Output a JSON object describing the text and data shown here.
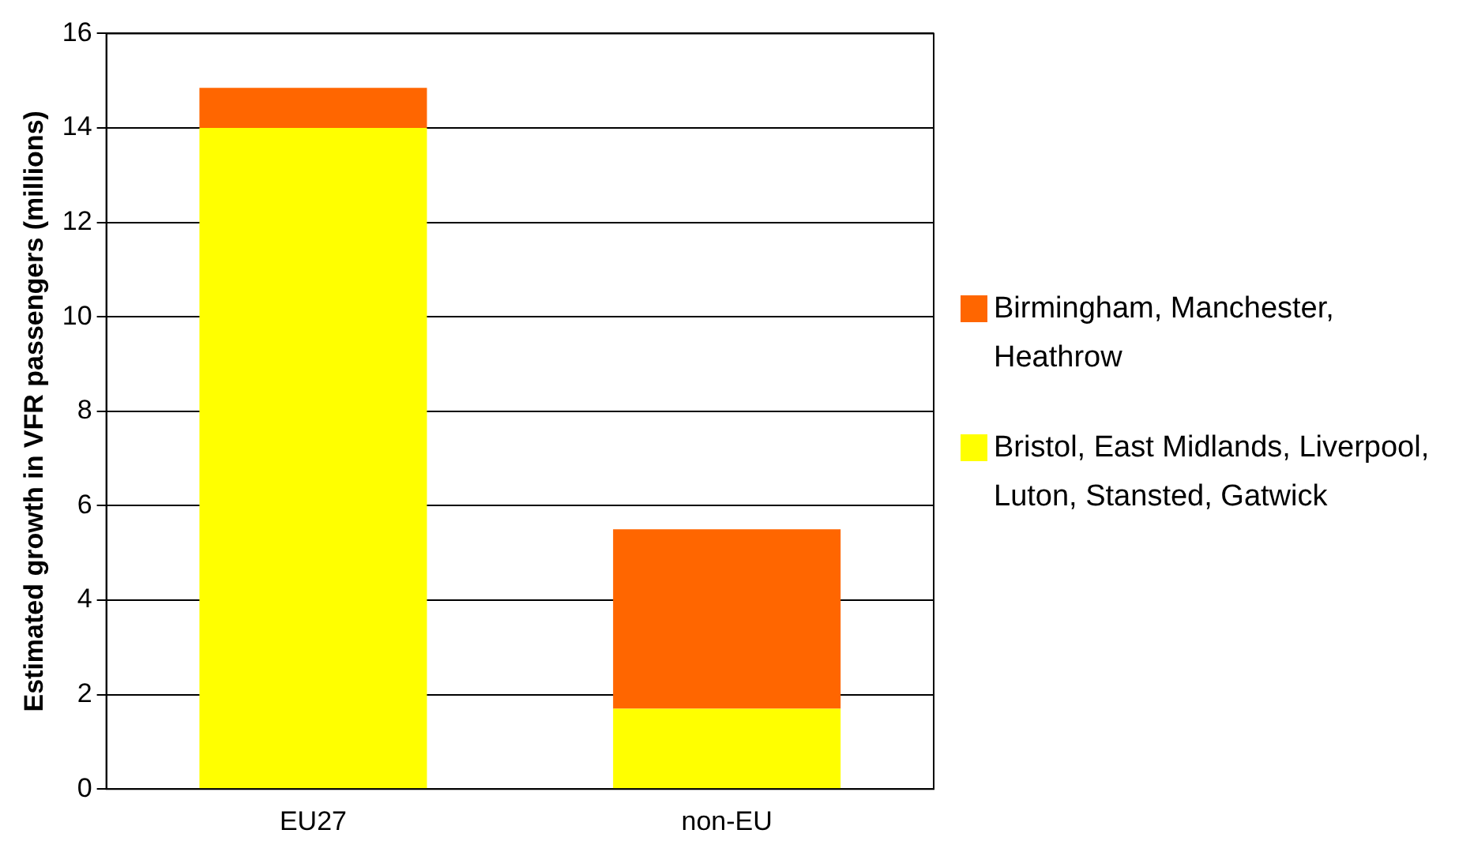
{
  "chart_data": {
    "type": "bar",
    "stacked": true,
    "categories": [
      "EU27",
      "non-EU"
    ],
    "ylabel": "Estimated growth in VFR passengers (millions)",
    "ylim": [
      0,
      16
    ],
    "yticks": [
      0,
      2,
      4,
      6,
      8,
      10,
      12,
      14,
      16
    ],
    "grid": "y",
    "legend": "right",
    "series": [
      {
        "name": "Bristol, East Midlands, Liverpool, Luton, Stansted, Gatwick",
        "color": "#ffff00",
        "values": [
          14.0,
          1.7
        ]
      },
      {
        "name": "Birmingham, Manchester, Heathrow",
        "color": "#ff6600",
        "values": [
          0.85,
          3.8
        ]
      }
    ]
  }
}
